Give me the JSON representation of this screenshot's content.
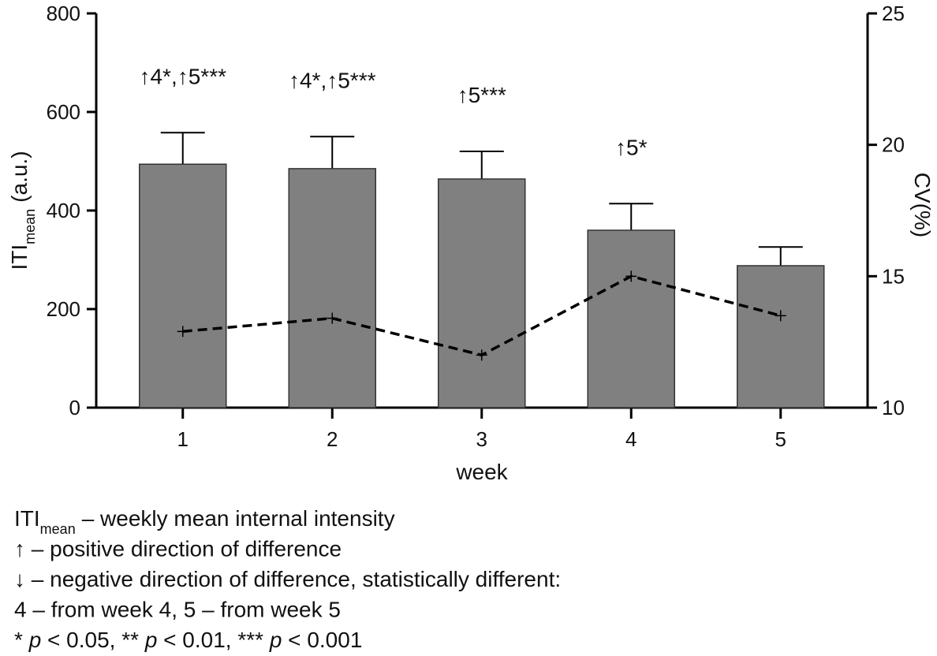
{
  "chart_data": {
    "type": "bar",
    "y_label": [
      {
        "text": "ITI"
      },
      {
        "text": "mean",
        "style": "sub"
      },
      {
        "text": "(a.u.)"
      }
    ],
    "y2_label": "CV(%)",
    "x_label": "week",
    "categories": [
      "1",
      "2",
      "3",
      "4",
      "5"
    ],
    "series": [
      {
        "type": "bar",
        "color": "#808080",
        "values": [
          494,
          485,
          464,
          360,
          288
        ],
        "errors": [
          64,
          65,
          56,
          54,
          38
        ]
      },
      {
        "type": "line",
        "axis": "y2",
        "color": "#000000",
        "dash": true,
        "values": [
          12.9,
          13.4,
          12.0,
          15.0,
          13.5
        ]
      }
    ],
    "annotations": [
      "↑4*,↑5***",
      "↑4*,↑5***",
      "↑5***",
      "↑5*",
      null
    ],
    "ylim": [
      0,
      800
    ],
    "yticks": [
      0,
      200,
      400,
      600,
      800
    ],
    "y2lim": [
      10,
      25
    ],
    "y2ticks": [
      10,
      15,
      20,
      25
    ],
    "grid": false
  },
  "notes": [
    [
      {
        "text": "ITI"
      },
      {
        "text": "mean",
        "style": "sub"
      },
      {
        "text": "– weekly mean internal intensity"
      }
    ],
    [
      {
        "text": "↑ – positive direction of difference"
      }
    ],
    [
      {
        "text": "↓ – negative direction of difference, statistically different:"
      }
    ],
    [
      {
        "text": "4 – from week 4, 5 – from week 5"
      }
    ],
    [
      {
        "text": "* "
      },
      {
        "text": "p",
        "style": "italic"
      },
      {
        "text": " < 0.05, ** "
      },
      {
        "text": "p",
        "style": "italic"
      },
      {
        "text": " < 0.01, *** "
      },
      {
        "text": "p",
        "style": "italic"
      },
      {
        "text": " < 0.001"
      }
    ]
  ]
}
